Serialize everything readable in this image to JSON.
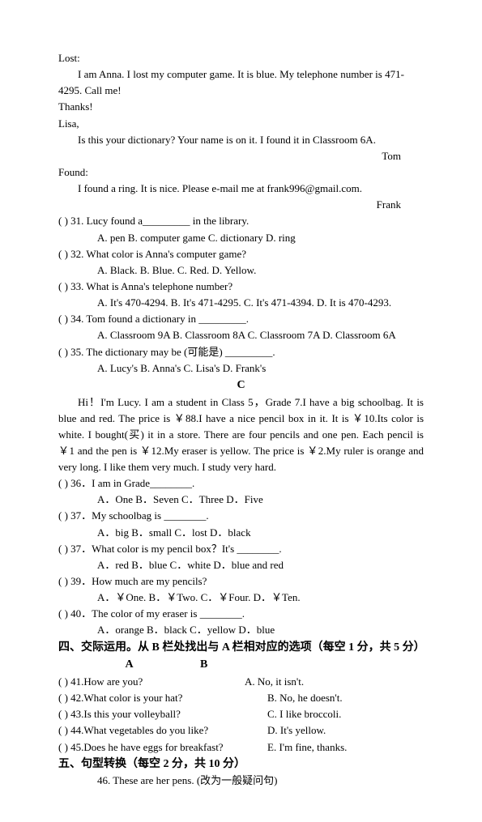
{
  "lost": {
    "header": "Lost:",
    "body": "I am Anna. I lost my computer game. It is blue. My telephone number is 471-4295. Call me!",
    "thanks": "Thanks!"
  },
  "letter": {
    "to": "Lisa,",
    "body": "Is this your dictionary? Your name is on it. I found it in Classroom 6A.",
    "sig": "Tom"
  },
  "found": {
    "header": "Found:",
    "body": "I found a ring. It is nice. Please e-mail me at frank996@gmail.com.",
    "sig": "Frank"
  },
  "q31": {
    "stem": "(    ) 31. Lucy found a_________ in the library.",
    "opts": "A. pen        B. computer game     C. dictionary       D. ring"
  },
  "q32": {
    "stem": "(    ) 32. What color is Anna's computer game?",
    "opts": "A. Black.        B. Blue.                 C. Red.               D. Yellow."
  },
  "q33": {
    "stem": "(    ) 33. What is Anna's telephone number?",
    "opts": "A. It's 470-4294.       B. It's 471-4295.     C. It's 471-4394.     D. It is 470-4293."
  },
  "q34": {
    "stem": "(    ) 34. Tom found a dictionary in _________.",
    "opts": "A. Classroom 9A       B. Classroom 8A     C. Classroom 7A       D. Classroom 6A"
  },
  "q35": {
    "stem_a": "(    ) 35. The dictionary may be (",
    "stem_cn": "可能是",
    "stem_b": ") _________.",
    "opts": "A. Lucy's         B. Anna's           C. Lisa's            D. Frank's"
  },
  "sectionC": "C",
  "passageC": {
    "p1a": "Hi！I'm Lucy. I am a student in Class 5，Grade 7.I have a big schoolbag. It is blue and red. The price is ￥88.I have a nice pencil box in it. It is ￥10.Its color is white. I bought(",
    "p1cn": "买",
    "p1b": ") it in a store. There are four pencils and one pen. Each pencil is ￥1 and the pen is ￥12.My eraser is yellow. The price is ￥2.My ruler is orange and very long. I like them very much. I study very hard."
  },
  "q36": {
    "stem": "(    ) 36．I am in Grade________.",
    "opts": "A．One      B．Seven          C．Three                 D．Five"
  },
  "q37a": {
    "stem": "(    ) 37．My schoolbag is ________.",
    "opts": "A．big        B．small          C．lost                D．black"
  },
  "q37b": {
    "stem": "(    ) 37．What color is my pencil box？It's ________.",
    "opts": "A．red        B．blue          C．white                D．blue and red"
  },
  "q39": {
    "stem": "(    ) 39．How much are my pencils?",
    "opts": "A．￥One.    B．￥Two.        C．￥Four.              D．￥Ten."
  },
  "q40": {
    "stem": "(    ) 40．The color of my eraser is ________.",
    "opts": "A．orange    B．black          C．yellow              D．blue"
  },
  "sec4": {
    "title": "四、交际运用。从 B 栏处找出与 A 栏相对应的选项（每空 1 分，共 5 分）",
    "colA": "A",
    "colB": "B",
    "r41q": "(      ) 41.How are you?",
    "r41a": "A. No, it isn't.",
    "r42q": "(      ) 42.What color is your hat?",
    "r42a": "B. No, he doesn't.",
    "r43q": "(      ) 43.Is this your volleyball?",
    "r43a": "C. I like broccoli.",
    "r44q": "(      ) 44.What vegetables do you like?",
    "r44a": "D. It's yellow.",
    "r45q": "(      ) 45.Does he have eggs for breakfast?",
    "r45a": "E. I'm fine, thanks."
  },
  "sec5": {
    "title": "五、句型转换（每空 2 分，共 10 分）",
    "q46": "46. These are her pens. (改为一般疑问句)"
  }
}
